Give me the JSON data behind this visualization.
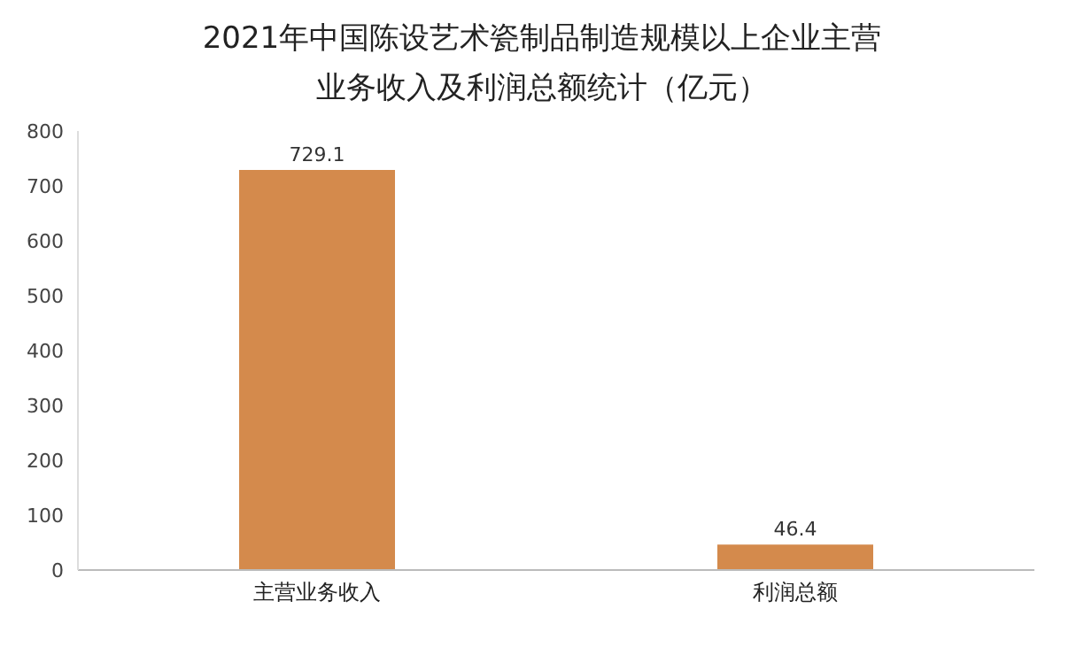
{
  "chart_data": {
    "type": "bar",
    "title": "2021年中国陈设艺术瓷制品制造规模以上企业主营业务收入及利润总额统计（亿元）",
    "categories": [
      "主营业务收入",
      "利润总额"
    ],
    "values": [
      729.1,
      46.4
    ],
    "color": "#d48a4c",
    "ylim": [
      0,
      800
    ],
    "yticks": [
      0,
      100,
      200,
      300,
      400,
      500,
      600,
      700,
      800
    ],
    "data_labels": true
  }
}
